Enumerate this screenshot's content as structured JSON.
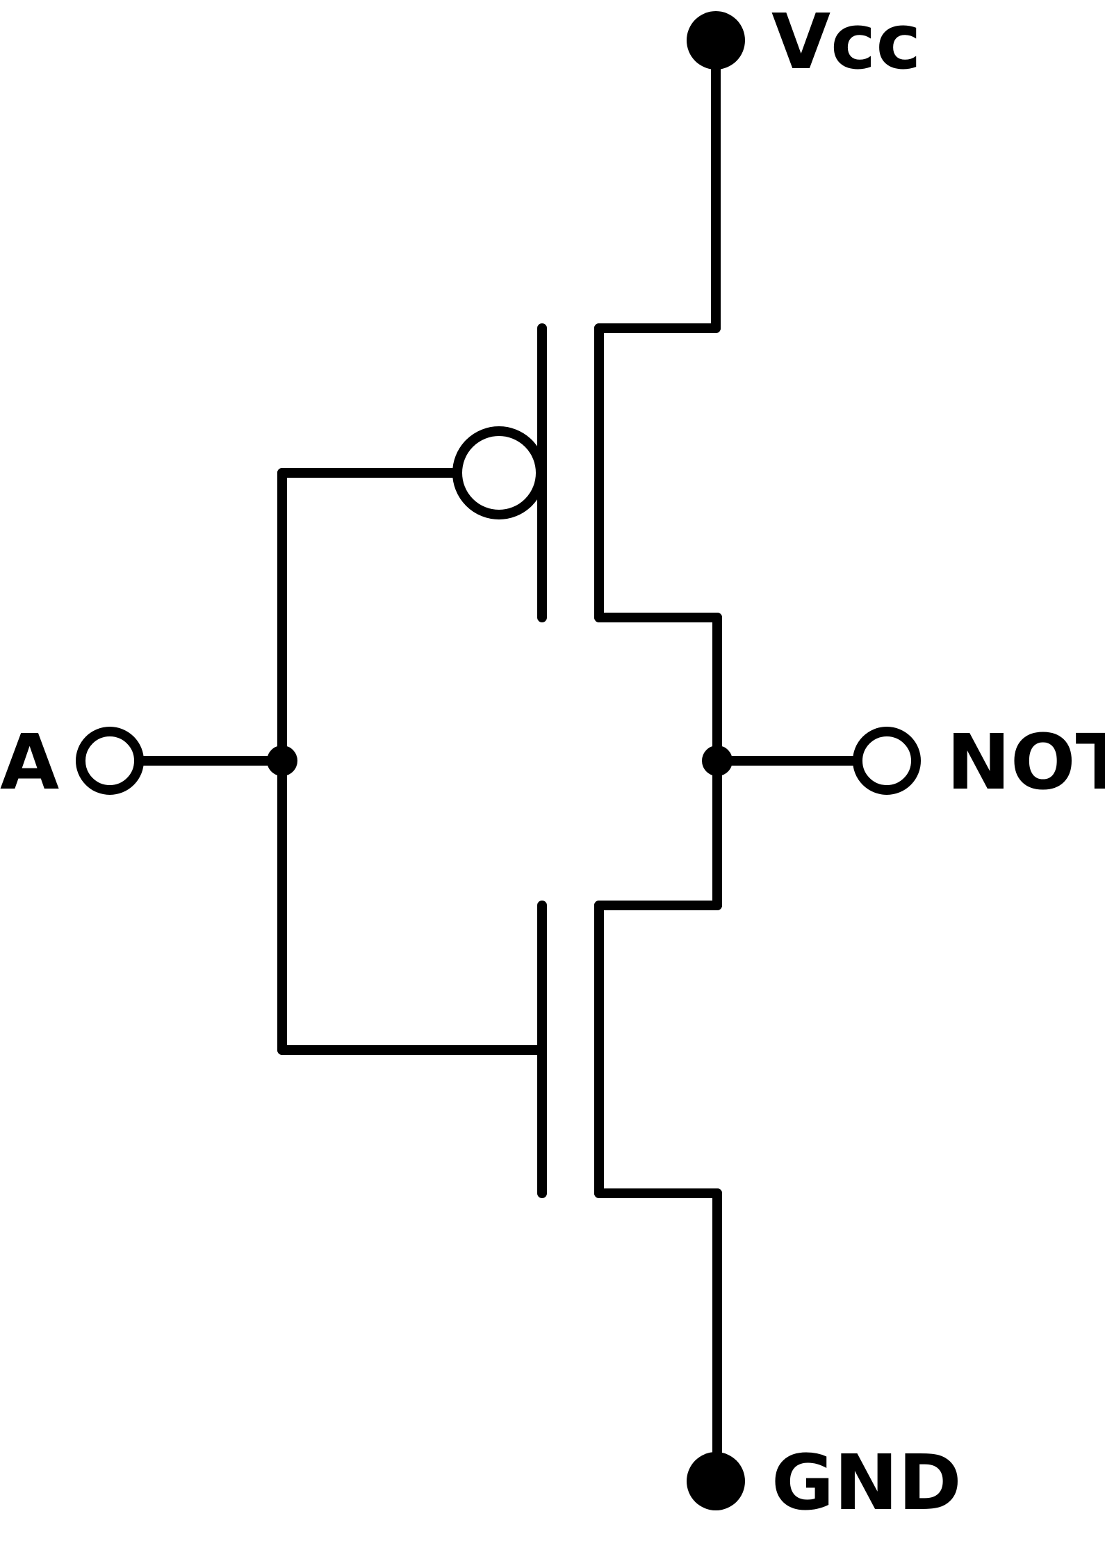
{
  "labels": {
    "vcc": "Vcc",
    "gnd": "GND",
    "input": "A",
    "output": "NOT"
  },
  "colors": {
    "ink": "#000000",
    "background": "#ffffff"
  }
}
